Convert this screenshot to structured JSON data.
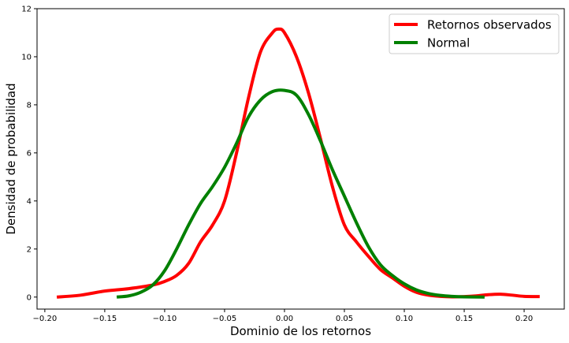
{
  "chart_data": {
    "type": "line",
    "title": "",
    "xlabel": "Dominio de los retornos",
    "ylabel": "Densidad de probabilidad",
    "xlim": [
      -0.2065,
      0.2335
    ],
    "ylim": [
      -0.5,
      12
    ],
    "xticks": [
      -0.2,
      -0.15,
      -0.1,
      -0.05,
      0.0,
      0.05,
      0.1,
      0.15,
      0.2
    ],
    "xtick_labels": [
      "−0.20",
      "−0.15",
      "−0.10",
      "−0.05",
      "0.00",
      "0.05",
      "0.10",
      "0.15",
      "0.20"
    ],
    "yticks": [
      0,
      2,
      4,
      6,
      8,
      10,
      12
    ],
    "ytick_labels": [
      "0",
      "2",
      "4",
      "6",
      "8",
      "10",
      "12"
    ],
    "grid": false,
    "legend_position": "top-right",
    "series": [
      {
        "name": "Retornos observados",
        "color": "#ff0000",
        "x": [
          -0.19,
          -0.17,
          -0.15,
          -0.13,
          -0.11,
          -0.1,
          -0.09,
          -0.08,
          -0.07,
          -0.06,
          -0.05,
          -0.04,
          -0.03,
          -0.02,
          -0.01,
          -0.005,
          0.0,
          0.01,
          0.02,
          0.03,
          0.04,
          0.05,
          0.06,
          0.07,
          0.08,
          0.09,
          0.1,
          0.11,
          0.12,
          0.13,
          0.14,
          0.15,
          0.16,
          0.17,
          0.18,
          0.19,
          0.2,
          0.213
        ],
        "y": [
          0.0,
          0.08,
          0.25,
          0.35,
          0.5,
          0.65,
          0.9,
          1.4,
          2.3,
          3.0,
          4.0,
          6.0,
          8.3,
          10.2,
          11.0,
          11.15,
          11.0,
          10.0,
          8.5,
          6.6,
          4.6,
          3.0,
          2.3,
          1.7,
          1.15,
          0.8,
          0.45,
          0.2,
          0.08,
          0.03,
          0.01,
          0.02,
          0.05,
          0.1,
          0.12,
          0.08,
          0.03,
          0.02
        ]
      },
      {
        "name": "Normal",
        "color": "#008000",
        "x": [
          -0.14,
          -0.13,
          -0.12,
          -0.11,
          -0.1,
          -0.09,
          -0.08,
          -0.07,
          -0.06,
          -0.05,
          -0.04,
          -0.03,
          -0.02,
          -0.01,
          0.0,
          0.01,
          0.02,
          0.03,
          0.04,
          0.05,
          0.06,
          0.07,
          0.08,
          0.09,
          0.1,
          0.11,
          0.12,
          0.13,
          0.14,
          0.15,
          0.167
        ],
        "y": [
          0.0,
          0.05,
          0.2,
          0.5,
          1.1,
          2.0,
          3.0,
          3.9,
          4.6,
          5.4,
          6.4,
          7.5,
          8.2,
          8.55,
          8.6,
          8.4,
          7.6,
          6.5,
          5.3,
          4.2,
          3.1,
          2.1,
          1.35,
          0.9,
          0.55,
          0.3,
          0.15,
          0.07,
          0.03,
          0.01,
          0.0
        ]
      }
    ]
  }
}
